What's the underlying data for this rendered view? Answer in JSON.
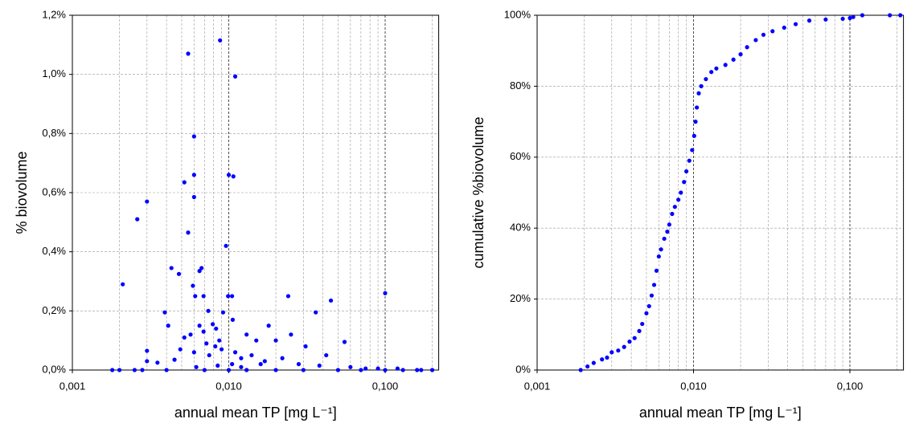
{
  "chart_data": [
    {
      "type": "scatter",
      "color": "#0000ff",
      "log_x": true,
      "grid": true,
      "xlabel": "annual mean TP [mg L⁻¹]",
      "ylabel": "% biovolume",
      "xlim": [
        0.001,
        0.22
      ],
      "ylim": [
        0,
        1.2
      ],
      "xticks": [
        {
          "value": 0.001,
          "label": "0,001"
        },
        {
          "value": 0.01,
          "label": "0,010"
        },
        {
          "value": 0.1,
          "label": "0,100"
        }
      ],
      "yticks": [
        {
          "value": 0,
          "label": "0,0%"
        },
        {
          "value": 0.2,
          "label": "0,2%"
        },
        {
          "value": 0.4,
          "label": "0,4%"
        },
        {
          "value": 0.6,
          "label": "0,6%"
        },
        {
          "value": 0.8,
          "label": "0,8%"
        },
        {
          "value": 1.0,
          "label": "1,0%"
        },
        {
          "value": 1.2,
          "label": "1,2%"
        }
      ],
      "x": [
        0.0088,
        0.0055,
        0.011,
        0.006,
        0.01,
        0.0107,
        0.006,
        0.0052,
        0.006,
        0.003,
        0.0026,
        0.0055,
        0.0096,
        0.0021,
        0.0043,
        0.0048,
        0.0067,
        0.0065,
        0.0059,
        0.0061,
        0.0069,
        0.0099,
        0.0105,
        0.1,
        0.045,
        0.024,
        0.036,
        0.0039,
        0.0074,
        0.0092,
        0.0079,
        0.0065,
        0.0083,
        0.0106,
        0.0041,
        0.0057,
        0.0052,
        0.0069,
        0.0087,
        0.013,
        0.018,
        0.015,
        0.02,
        0.025,
        0.031,
        0.042,
        0.055,
        0.0049,
        0.006,
        0.0075,
        0.009,
        0.011,
        0.012,
        0.014,
        0.017,
        0.022,
        0.0072,
        0.0082,
        0.003,
        0.003,
        0.0035,
        0.0045,
        0.016,
        0.028,
        0.038,
        0.06,
        0.075,
        0.09,
        0.12,
        0.16,
        0.2,
        0.0018,
        0.002,
        0.0025,
        0.0028,
        0.004,
        0.007,
        0.01,
        0.013,
        0.02,
        0.03,
        0.05,
        0.07,
        0.1,
        0.13,
        0.17,
        0.0062,
        0.0085,
        0.0105,
        0.012
      ],
      "values": [
        1.115,
        1.07,
        0.993,
        0.79,
        0.66,
        0.655,
        0.66,
        0.635,
        0.585,
        0.57,
        0.51,
        0.465,
        0.42,
        0.29,
        0.345,
        0.325,
        0.345,
        0.335,
        0.285,
        0.25,
        0.25,
        0.25,
        0.25,
        0.26,
        0.235,
        0.25,
        0.195,
        0.195,
        0.2,
        0.195,
        0.155,
        0.15,
        0.14,
        0.17,
        0.15,
        0.12,
        0.11,
        0.13,
        0.1,
        0.12,
        0.15,
        0.1,
        0.1,
        0.12,
        0.08,
        0.05,
        0.095,
        0.07,
        0.06,
        0.05,
        0.07,
        0.06,
        0.04,
        0.05,
        0.03,
        0.04,
        0.09,
        0.08,
        0.065,
        0.03,
        0.025,
        0.035,
        0.02,
        0.02,
        0.015,
        0.01,
        0.005,
        0.005,
        0.005,
        0,
        0,
        0,
        0,
        0,
        0,
        0,
        0,
        0,
        0,
        0,
        0,
        0,
        0,
        0,
        0,
        0,
        0.01,
        0.015,
        0.02,
        0.01
      ]
    },
    {
      "type": "scatter",
      "color": "#0000ff",
      "log_x": true,
      "grid": true,
      "xlabel": "annual mean TP [mg L⁻¹]",
      "ylabel": "cumulative %biovolume",
      "xlim": [
        0.001,
        0.22
      ],
      "ylim": [
        0,
        100
      ],
      "xticks": [
        {
          "value": 0.001,
          "label": "0,001"
        },
        {
          "value": 0.01,
          "label": "0,010"
        },
        {
          "value": 0.1,
          "label": "0,100"
        }
      ],
      "yticks": [
        {
          "value": 0,
          "label": "0%"
        },
        {
          "value": 20,
          "label": "20%"
        },
        {
          "value": 40,
          "label": "40%"
        },
        {
          "value": 60,
          "label": "60%"
        },
        {
          "value": 80,
          "label": "80%"
        },
        {
          "value": 100,
          "label": "100%"
        }
      ],
      "x": [
        0.0019,
        0.0021,
        0.0023,
        0.0026,
        0.0028,
        0.003,
        0.0033,
        0.0036,
        0.0039,
        0.0042,
        0.0045,
        0.0047,
        0.005,
        0.0052,
        0.0054,
        0.0056,
        0.0058,
        0.006,
        0.0062,
        0.0065,
        0.0068,
        0.007,
        0.0073,
        0.0076,
        0.008,
        0.0083,
        0.0087,
        0.009,
        0.0094,
        0.0098,
        0.0101,
        0.0103,
        0.0105,
        0.0108,
        0.0112,
        0.012,
        0.013,
        0.014,
        0.016,
        0.018,
        0.02,
        0.022,
        0.025,
        0.028,
        0.032,
        0.038,
        0.045,
        0.055,
        0.07,
        0.09,
        0.1,
        0.105,
        0.12,
        0.18,
        0.21
      ],
      "values": [
        0,
        1,
        2,
        3,
        3.5,
        5,
        5.5,
        6.5,
        8,
        9,
        11,
        13,
        16,
        18,
        21,
        24,
        28,
        32,
        34,
        37,
        39,
        41,
        44,
        46,
        48,
        50,
        53,
        56,
        59,
        62,
        66,
        70,
        74,
        78,
        80,
        82,
        84,
        85,
        86,
        87.5,
        89,
        91,
        93,
        94.5,
        95.5,
        96.5,
        97.5,
        98.5,
        98.8,
        99,
        99.2,
        99.5,
        100,
        100,
        100
      ]
    }
  ]
}
